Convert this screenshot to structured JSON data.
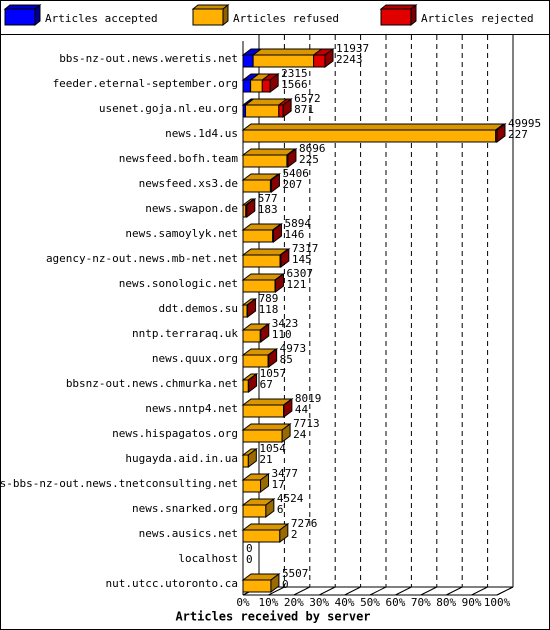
{
  "chart_data": {
    "type": "bar",
    "orientation": "horizontal",
    "stacked": true,
    "categories": [
      "bbs-nz-out.news.weretis.net",
      "feeder.eternal-september.org",
      "usenet.goja.nl.eu.org",
      "news.1d4.us",
      "newsfeed.bofh.team",
      "newsfeed.xs3.de",
      "news.swapon.de",
      "news.samoylyk.net",
      "agency-nz-out.news.mb-net.net",
      "news.sonologic.net",
      "ddt.demos.su",
      "nntp.terraraq.uk",
      "news.quux.org",
      "bbsnz-out.news.chmurka.net",
      "news.nntp4.net",
      "news.hispagatos.org",
      "hugayda.aid.in.ua",
      "news-bbs-nz-out.news.tnetconsulting.net",
      "news.snarked.org",
      "news.ausics.net",
      "localhost",
      "nut.utcc.utoronto.ca"
    ],
    "series": [
      {
        "name": "Articles accepted",
        "color": "#0000ff",
        "values": [
          4,
          3,
          1,
          0,
          0,
          0,
          0,
          0,
          0,
          0,
          0,
          0,
          0,
          0,
          0,
          0,
          0,
          0,
          0,
          0,
          0,
          0
        ]
      },
      {
        "name": "Articles refused",
        "color": "#ffb000",
        "values": [
          23.8,
          4.6,
          13.1,
          99.5,
          17.3,
          10.8,
          1.1,
          11.7,
          14.6,
          12.6,
          1.6,
          6.8,
          9.9,
          2.1,
          16.0,
          15.4,
          2.1,
          6.9,
          9.0,
          14.5,
          0,
          11.0
        ]
      },
      {
        "name": "Articles rejected",
        "color": "#e00000",
        "values": [
          4.5,
          3.1,
          1.7,
          0.5,
          0.4,
          0.4,
          0.4,
          0.3,
          0.3,
          0.2,
          0.2,
          0.2,
          0.2,
          0.1,
          0.1,
          0,
          0,
          0,
          0,
          0,
          0,
          0
        ]
      }
    ],
    "bar_labels_top": [
      11937,
      2315,
      6572,
      49995,
      8696,
      5406,
      577,
      5894,
      7317,
      6307,
      789,
      3423,
      4973,
      1057,
      8019,
      7713,
      1054,
      3477,
      4524,
      7276,
      0,
      5507
    ],
    "bar_labels_bottom": [
      2243,
      1566,
      871,
      227,
      225,
      207,
      183,
      146,
      145,
      121,
      118,
      110,
      85,
      67,
      44,
      24,
      21,
      17,
      6,
      2,
      0,
      0
    ],
    "xlim": [
      0,
      100
    ],
    "xticks": [
      {
        "value": 0,
        "label": "0%"
      },
      {
        "value": 10,
        "label": "10%"
      },
      {
        "value": 20,
        "label": "20%"
      },
      {
        "value": 30,
        "label": "30%"
      },
      {
        "value": 40,
        "label": "40%"
      },
      {
        "value": 50,
        "label": "50%"
      },
      {
        "value": 60,
        "label": "60%"
      },
      {
        "value": 70,
        "label": "70%"
      },
      {
        "value": 80,
        "label": "80%"
      },
      {
        "value": 90,
        "label": "90%"
      },
      {
        "value": 100,
        "label": "100%"
      }
    ],
    "xlabel": "Articles received by server",
    "grid": true
  }
}
